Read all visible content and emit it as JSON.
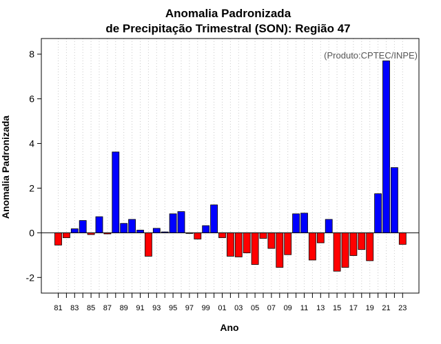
{
  "chart_data": {
    "type": "bar",
    "title_lines": [
      "Anomalia Padronizada",
      "de Precipitação Trimestral (SON): Região 47"
    ],
    "xlabel": "Ano",
    "ylabel": "Anomalia Padronizada",
    "annotation": "(Produto:CPTEC/INPE)",
    "ylim": [
      -2.7,
      8.7
    ],
    "yticks": [
      -2,
      0,
      2,
      4,
      6,
      8
    ],
    "ytick_labels": [
      "-2",
      "0",
      "2",
      "4",
      "6",
      "8"
    ],
    "grid": "vertical dotted",
    "colors": {
      "positive": "#0000ff",
      "negative": "#ff0000",
      "frame": "#000000",
      "grid": "#c8c8c8"
    },
    "categories": [
      "1981",
      "1982",
      "1983",
      "1984",
      "1985",
      "1986",
      "1987",
      "1988",
      "1989",
      "1990",
      "1991",
      "1992",
      "1993",
      "1994",
      "1995",
      "1996",
      "1997",
      "1998",
      "1999",
      "2000",
      "2001",
      "2002",
      "2003",
      "2004",
      "2005",
      "2006",
      "2007",
      "2008",
      "2009",
      "2010",
      "2011",
      "2012",
      "2013",
      "2014",
      "2015",
      "2016",
      "2017",
      "2018",
      "2019",
      "2020",
      "2021",
      "2022",
      "2023"
    ],
    "xtick_labels": [
      "81",
      "",
      "83",
      "",
      "85",
      "",
      "87",
      "",
      "89",
      "",
      "91",
      "",
      "93",
      "",
      "95",
      "",
      "97",
      "",
      "99",
      "",
      "01",
      "",
      "03",
      "",
      "05",
      "",
      "07",
      "",
      "09",
      "",
      "11",
      "",
      "13",
      "",
      "15",
      "",
      "17",
      "",
      "19",
      "",
      "21",
      "",
      "23"
    ],
    "values": [
      -0.55,
      -0.22,
      0.18,
      0.55,
      -0.08,
      0.72,
      -0.05,
      3.62,
      0.42,
      0.6,
      0.12,
      -1.05,
      0.2,
      0.04,
      0.85,
      0.95,
      -0.03,
      -0.28,
      0.32,
      1.25,
      -0.22,
      -1.05,
      -1.08,
      -0.9,
      -1.42,
      -0.25,
      -0.7,
      -1.55,
      -0.98,
      0.85,
      0.88,
      -1.22,
      -0.45,
      0.6,
      -1.72,
      -1.55,
      -1.02,
      -0.75,
      -1.25,
      1.75,
      7.7,
      2.92,
      -0.52
    ]
  }
}
